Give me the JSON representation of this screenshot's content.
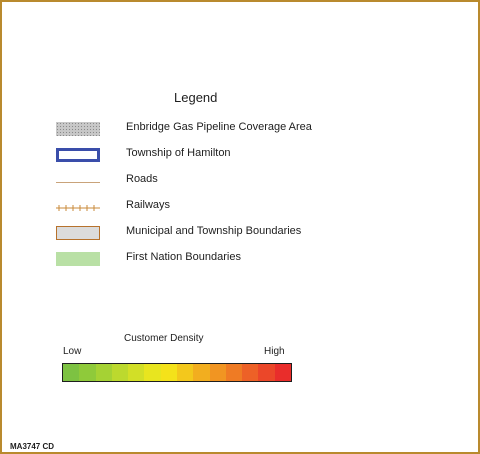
{
  "legend": {
    "title": "Legend",
    "items": [
      {
        "label": "Enbridge Gas Pipeline Coverage Area",
        "icon": "stippled-gray-area-icon",
        "color": "#c8c8c8"
      },
      {
        "label": "Township of Hamilton",
        "icon": "blue-outline-box-icon",
        "color": "#3a4eaa"
      },
      {
        "label": "Roads",
        "icon": "road-line-icon",
        "color": "#c9a37a"
      },
      {
        "label": "Railways",
        "icon": "railway-line-icon",
        "color": "#c98a3a"
      },
      {
        "label": "Municipal and Township Boundaries",
        "icon": "orange-outline-gray-box-icon",
        "color": "#b7722c"
      },
      {
        "label": "First Nation Boundaries",
        "icon": "green-fill-box-icon",
        "color": "#b9e0a5"
      }
    ]
  },
  "density_scale": {
    "title": "Customer Density",
    "low_label": "Low",
    "high_label": "High",
    "colors": [
      "#7dc242",
      "#8fca3a",
      "#a5d234",
      "#bcd92e",
      "#d2df27",
      "#e8e51f",
      "#f4e21a",
      "#f3c81c",
      "#f2ae1f",
      "#f19522",
      "#ef7b24",
      "#ed6127",
      "#eb4729",
      "#e92d2b"
    ]
  },
  "map_id": "MA3747 CD",
  "frame_color": "#b98a2e"
}
